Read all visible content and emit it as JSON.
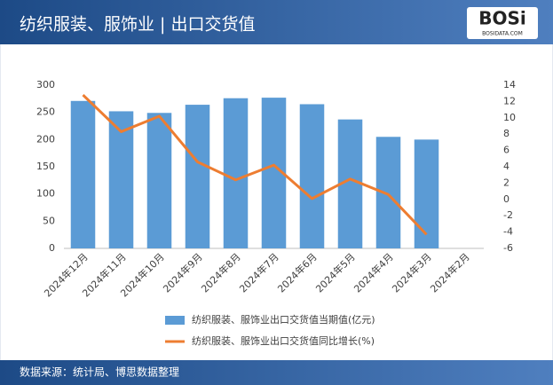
{
  "chart_data": {
    "type": "bar",
    "title": "纺织服装、服饰业 | 出口交货值",
    "source": "数据来源：统计局、博思数据整理",
    "categories": [
      "2024年12月",
      "2024年11月",
      "2024年10月",
      "2024年9月",
      "2024年8月",
      "2024年7月",
      "2024年6月",
      "2024年5月",
      "2024年4月",
      "2024年3月",
      "2024年2月"
    ],
    "series": [
      {
        "name": "纺织服装、服饰业出口交货值当期值(亿元)",
        "type": "bar",
        "color": "#5b9bd5",
        "values": [
          271,
          252,
          249,
          264,
          276,
          277,
          265,
          237,
          205,
          200,
          null
        ]
      },
      {
        "name": "纺织服装、服饰业出口交货值同比增长(%)",
        "type": "line",
        "axis": "y2",
        "color": "#ed7d31",
        "values": [
          12.8,
          8.3,
          10.2,
          4.6,
          2.4,
          4.2,
          0.1,
          2.5,
          0.6,
          -4.3,
          null
        ]
      }
    ],
    "ylim": [
      0,
      300
    ],
    "yticks": [
      0,
      50,
      100,
      150,
      200,
      250,
      300
    ],
    "y2lim": [
      -6,
      14
    ],
    "y2ticks": [
      -6,
      -4,
      -2,
      0,
      2,
      4,
      6,
      8,
      10,
      12,
      14
    ],
    "grid": false,
    "legend": "bottom"
  },
  "branding": {
    "logo": "BOSi",
    "site": "BOSIDATA.COM"
  }
}
